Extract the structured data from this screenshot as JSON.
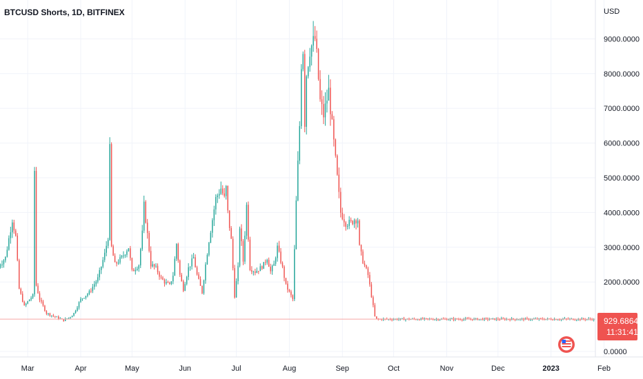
{
  "header": {
    "title": "BTCUSD Shorts, 1D, BITFINEX"
  },
  "price_axis": {
    "currency": "USD"
  },
  "last_price": {
    "value": "929.6864",
    "countdown": "11:31:41"
  },
  "colors": {
    "up": "#26a69a",
    "down": "#ef5350",
    "grid": "#f0f3fa",
    "price_line": "#f7a6a4",
    "badge_bg": "#ef5350",
    "text": "#131722"
  },
  "icons": {
    "flag": "us-flag-icon"
  },
  "chart_data": {
    "type": "candlestick",
    "title": "BTCUSD Shorts, 1D, BITFINEX",
    "currency": "USD",
    "ylim": [
      0,
      10000
    ],
    "y_ticks": [
      "9000.0000",
      "8000.0000",
      "7000.0000",
      "6000.0000",
      "5000.0000",
      "4000.0000",
      "3000.0000",
      "2000.0000",
      "0.0000"
    ],
    "y_tick_values": [
      9000,
      8000,
      7000,
      6000,
      5000,
      4000,
      3000,
      2000,
      0
    ],
    "x_ticks": [
      "Mar",
      "Apr",
      "May",
      "Jun",
      "Jul",
      "Aug",
      "Sep",
      "Oct",
      "Nov",
      "Dec",
      "2023",
      "Feb"
    ],
    "x_tick_days": [
      59,
      90,
      120,
      151,
      181,
      212,
      243,
      273,
      304,
      334,
      365,
      396
    ],
    "start_day": 42,
    "end_day": 390,
    "last_price": 929.6864,
    "series_anchors": [
      [
        42,
        2450
      ],
      [
        46,
        2700
      ],
      [
        50,
        3800
      ],
      [
        52,
        3300
      ],
      [
        54,
        1800
      ],
      [
        57,
        1300
      ],
      [
        60,
        1500
      ],
      [
        62,
        1600
      ],
      [
        63,
        5200
      ],
      [
        64,
        1900
      ],
      [
        66,
        1500
      ],
      [
        70,
        1100
      ],
      [
        75,
        1000
      ],
      [
        80,
        900
      ],
      [
        84,
        1000
      ],
      [
        86,
        1100
      ],
      [
        90,
        1500
      ],
      [
        95,
        1700
      ],
      [
        100,
        2100
      ],
      [
        104,
        2800
      ],
      [
        106,
        3300
      ],
      [
        107,
        5800
      ],
      [
        108,
        3000
      ],
      [
        110,
        2500
      ],
      [
        114,
        2700
      ],
      [
        118,
        3000
      ],
      [
        120,
        2300
      ],
      [
        124,
        2500
      ],
      [
        126,
        3400
      ],
      [
        127,
        4200
      ],
      [
        128,
        3800
      ],
      [
        131,
        2500
      ],
      [
        134,
        2400
      ],
      [
        137,
        2100
      ],
      [
        139,
        2000
      ],
      [
        142,
        1900
      ],
      [
        144,
        2200
      ],
      [
        146,
        3100
      ],
      [
        148,
        2200
      ],
      [
        150,
        1800
      ],
      [
        153,
        2400
      ],
      [
        156,
        2700
      ],
      [
        158,
        2200
      ],
      [
        161,
        1700
      ],
      [
        163,
        2500
      ],
      [
        165,
        3200
      ],
      [
        167,
        3800
      ],
      [
        169,
        4400
      ],
      [
        172,
        4700
      ],
      [
        174,
        4400
      ],
      [
        175,
        4700
      ],
      [
        176,
        4000
      ],
      [
        178,
        3200
      ],
      [
        180,
        1600
      ],
      [
        182,
        2400
      ],
      [
        183,
        3600
      ],
      [
        185,
        2600
      ],
      [
        187,
        4200
      ],
      [
        189,
        2400
      ],
      [
        192,
        2300
      ],
      [
        195,
        2400
      ],
      [
        197,
        2500
      ],
      [
        199,
        2700
      ],
      [
        201,
        2300
      ],
      [
        203,
        2500
      ],
      [
        205,
        3000
      ],
      [
        208,
        2400
      ],
      [
        210,
        1900
      ],
      [
        212,
        1700
      ],
      [
        214,
        1500
      ],
      [
        216,
        4300
      ],
      [
        218,
        6500
      ],
      [
        219,
        8300
      ],
      [
        220,
        8700
      ],
      [
        221,
        6600
      ],
      [
        222,
        8000
      ],
      [
        224,
        8700
      ],
      [
        226,
        8900
      ],
      [
        227,
        9000
      ],
      [
        228,
        8500
      ],
      [
        230,
        7200
      ],
      [
        232,
        6800
      ],
      [
        235,
        7500
      ],
      [
        236,
        7000
      ],
      [
        238,
        6000
      ],
      [
        240,
        5000
      ],
      [
        242,
        4000
      ],
      [
        245,
        3700
      ],
      [
        248,
        3700
      ],
      [
        250,
        3800
      ],
      [
        252,
        3800
      ],
      [
        253,
        3000
      ],
      [
        255,
        2600
      ],
      [
        258,
        2200
      ],
      [
        260,
        1600
      ],
      [
        262,
        1000
      ],
      [
        263,
        929.6864
      ]
    ]
  }
}
